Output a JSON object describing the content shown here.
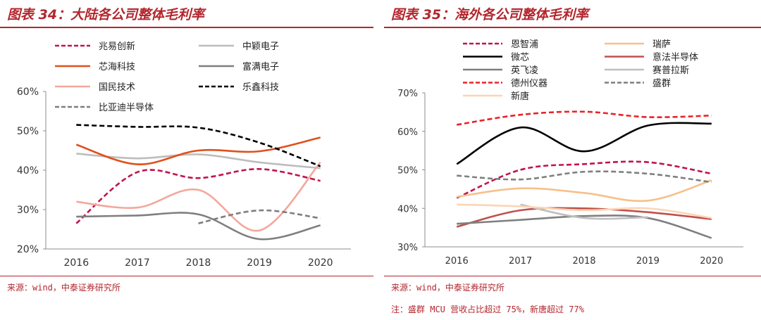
{
  "left": {
    "title": "图表 34：大陆各公司整体毛利率",
    "source": "来源：wind，中泰证券研究所",
    "chart_data": {
      "type": "line",
      "x": [
        "2016",
        "2017",
        "2018",
        "2019",
        "2020"
      ],
      "ylim": [
        20,
        60
      ],
      "yticks": [
        "20%",
        "30%",
        "40%",
        "50%",
        "60%"
      ],
      "legend_placement": "top",
      "grid": false,
      "series": [
        {
          "name": "兆易创新",
          "values": [
            26.5,
            39.5,
            38.0,
            40.3,
            37.3
          ],
          "color": "#c0144c",
          "dash": true
        },
        {
          "name": "中颖电子",
          "values": [
            44.2,
            43.0,
            44.0,
            42.0,
            40.5
          ],
          "color": "#bdbdbd",
          "dash": false
        },
        {
          "name": "芯海科技",
          "values": [
            46.5,
            41.5,
            45.0,
            44.8,
            48.3
          ],
          "color": "#e0501c",
          "dash": false
        },
        {
          "name": "富满电子",
          "values": [
            28.2,
            28.5,
            28.8,
            22.5,
            26.0
          ],
          "color": "#7f7f7f",
          "dash": false
        },
        {
          "name": "国民技术",
          "values": [
            32.0,
            30.5,
            35.0,
            24.7,
            42.0
          ],
          "color": "#f4a79c",
          "dash": false
        },
        {
          "name": "乐鑫科技",
          "values": [
            51.5,
            51.0,
            50.8,
            47.0,
            41.0
          ],
          "color": "#000000",
          "dash": true
        },
        {
          "name": "比亚迪半导体",
          "values": [
            null,
            null,
            26.5,
            29.8,
            27.8
          ],
          "color": "#7f7f7f",
          "dash": true
        }
      ]
    }
  },
  "right": {
    "title": "图表 35：海外各公司整体毛利率",
    "source": "来源：wind，中泰证券研究所",
    "note": "注：盛群 MCU 营收占比超过 75%，新唐超过 77%",
    "chart_data": {
      "type": "line",
      "x": [
        "2016",
        "2017",
        "2018",
        "2019",
        "2020"
      ],
      "ylim": [
        30,
        70
      ],
      "yticks": [
        "30%",
        "40%",
        "50%",
        "60%",
        "70%"
      ],
      "legend_placement": "top",
      "grid": false,
      "series": [
        {
          "name": "恩智浦",
          "values": [
            42.7,
            50.0,
            51.5,
            52.0,
            49.0
          ],
          "color": "#c0144c",
          "dash": true
        },
        {
          "name": "瑞萨",
          "values": [
            43.0,
            45.2,
            44.0,
            42.0,
            47.3
          ],
          "color": "#f7c08a",
          "dash": false
        },
        {
          "name": "微芯",
          "values": [
            51.5,
            61.0,
            54.8,
            61.5,
            62.0
          ],
          "color": "#000000",
          "dash": false
        },
        {
          "name": "意法半导体",
          "values": [
            35.2,
            39.5,
            40.0,
            39.0,
            37.2
          ],
          "color": "#c0504d",
          "dash": false
        },
        {
          "name": "英飞凌",
          "values": [
            36.0,
            37.0,
            38.0,
            37.5,
            32.3
          ],
          "color": "#7f7f7f",
          "dash": false
        },
        {
          "name": "赛普拉斯",
          "values": [
            null,
            41.0,
            37.5,
            37.7,
            null
          ],
          "color": "#bfbfbf",
          "dash": false
        },
        {
          "name": "德州仪器",
          "values": [
            61.7,
            64.3,
            65.1,
            63.7,
            64.1
          ],
          "color": "#e8232a",
          "dash": true
        },
        {
          "name": "盛群",
          "values": [
            48.5,
            47.5,
            49.5,
            49.0,
            46.8
          ],
          "color": "#7f7f7f",
          "dash": true
        },
        {
          "name": "新唐",
          "values": [
            41.0,
            40.5,
            39.5,
            40.0,
            37.5
          ],
          "color": "#fbd5b5",
          "dash": false
        }
      ]
    }
  }
}
